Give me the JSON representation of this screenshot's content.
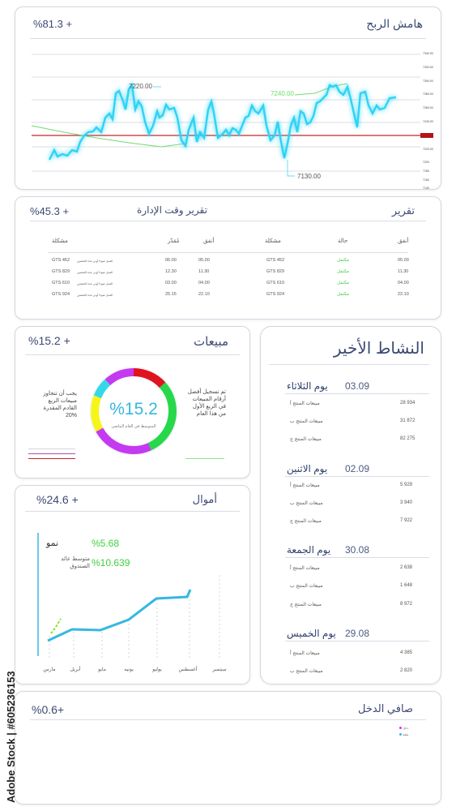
{
  "profit_margin": {
    "title": "هامش الربح",
    "pct": "%81.3 +",
    "callouts": [
      "7220.00",
      "7240.00",
      "7130.00"
    ],
    "y_ticks": [
      "7340.00",
      "7320.00",
      "7300.00",
      "7280.00",
      "7260.00",
      "7240.00",
      "7220.00",
      "7200",
      "7180",
      "7160",
      "7140"
    ]
  },
  "management_report": {
    "title_right": "تقرير",
    "title_mid": "تقرير وقت الإدارة",
    "pct": "%45.3 +",
    "headers_right": [
      "أنفق",
      "حالة",
      "مشكلة"
    ],
    "headers_left": [
      "أنفق",
      "مُقدّر",
      "مشكلة"
    ],
    "rows": [
      {
        "r_spent": "05.00",
        "r_status": "مكتمل",
        "r_issue": "GTS 452",
        "l_spent": "05.00",
        "l_est": "06.00",
        "l_issue": "GTS 452",
        "l_note": "العمل ضوءا أوني عدة الحصتين"
      },
      {
        "r_spent": "11.30",
        "r_status": "مكتمل",
        "r_issue": "GTS 829",
        "l_spent": "11.30",
        "l_est": "12.30",
        "l_issue": "GTS 829",
        "l_note": "العمل ضوءا أوني عدة الحصتين"
      },
      {
        "r_spent": "04.00",
        "r_status": "مكتمل",
        "r_issue": "GTS 610",
        "l_spent": "04.00",
        "l_est": "03.00",
        "l_issue": "GTS 610",
        "l_note": "العمل ضوءا أوني عدة الحصتين"
      },
      {
        "r_spent": "22.10",
        "r_status": "مكتمل",
        "r_issue": "GTS 924",
        "l_spent": "22.10",
        "l_est": "25.15",
        "l_issue": "GTS 924",
        "l_note": "العمل ضوءا أوني عدة الحصتين"
      }
    ]
  },
  "sales": {
    "title": "مبيعات",
    "pct": "%15.2 +",
    "center_value": "%15.2",
    "center_caption": "المتوسط في العام الماضي",
    "left_note": "يجب أن تتجاوز مبيعات الربع القادم المقدرة 20%",
    "right_note": "تم تسجيل أفضل أرقام المبيعات في الربع الأول من هذا العام",
    "ring_colors": [
      "#e0141e",
      "#27d84a",
      "#c43af0",
      "#f5f51a",
      "#35d8e8",
      "#c43af0"
    ]
  },
  "funds": {
    "title": "أموال",
    "pct": "%24.6 +",
    "growth_value": "%5.68",
    "growth_label": "نمو",
    "yield_value": "%10.639",
    "yield_label": "متوسط عائد الصندوق",
    "months": [
      "مارس",
      "أبريل",
      "مايو",
      "يونيه",
      "يوليو",
      "أغسطس",
      "سبتمبر"
    ]
  },
  "recent_activity": {
    "title": "النشاط الأخير",
    "days": [
      {
        "day": "يوم الثلاثاء",
        "date": "03.09",
        "items": [
          {
            "label": "مبيعات المنتج أ",
            "value": "28 934"
          },
          {
            "label": "مبيعات المنتج ب",
            "value": "31 872"
          },
          {
            "label": "مبيعات المنتج ج",
            "value": "82 275"
          }
        ]
      },
      {
        "day": "يوم الاثنين",
        "date": "02.09",
        "items": [
          {
            "label": "مبيعات المنتج أ",
            "value": "5 929"
          },
          {
            "label": "مبيعات المنتج ب",
            "value": "3 940"
          },
          {
            "label": "مبيعات المنتج ج",
            "value": "7 922"
          }
        ]
      },
      {
        "day": "يوم الجمعة",
        "date": "30.08",
        "items": [
          {
            "label": "مبيعات المنتج أ",
            "value": "2 638"
          },
          {
            "label": "مبيعات المنتج ب",
            "value": "1 648"
          },
          {
            "label": "مبيعات المنتج ج",
            "value": "8 972"
          }
        ]
      },
      {
        "day": "يوم الخميس",
        "date": "29.08",
        "items": [
          {
            "label": "مبيعات المنتج أ",
            "value": "4 385"
          },
          {
            "label": "مبيعات المنتج ب",
            "value": "2 820"
          }
        ]
      }
    ]
  },
  "net_income": {
    "title": "صافي الدخل",
    "pct": "%0.6+",
    "legend": [
      "دخل",
      "نفقة"
    ]
  },
  "watermark": "Adobe Stock | #605236153"
}
